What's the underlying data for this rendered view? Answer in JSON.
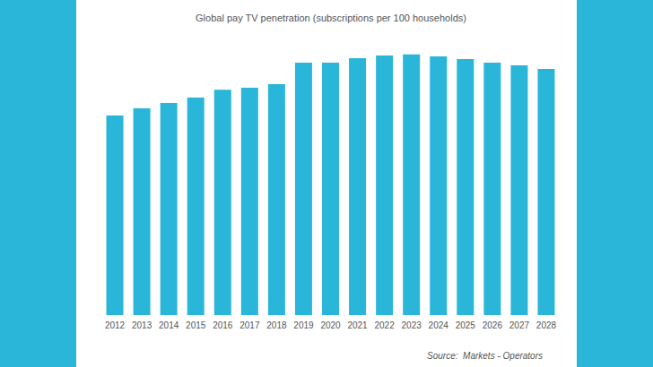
{
  "chart_data": {
    "type": "bar",
    "title": "Global pay TV penetration (subscriptions per 100 households)",
    "source": "Source:  Markets - Operators",
    "categories": [
      "2012",
      "2013",
      "2014",
      "2015",
      "2016",
      "2017",
      "2018",
      "2019",
      "2020",
      "2021",
      "2022",
      "2023",
      "2024",
      "2025",
      "2026",
      "2027",
      "2028"
    ],
    "values": [
      73.8,
      76.5,
      78.5,
      80.5,
      83.4,
      84.1,
      85.4,
      93.4,
      93.4,
      95.0,
      96.0,
      96.4,
      95.7,
      94.7,
      93.4,
      92.4,
      91.1
    ],
    "color": "#29b6d8",
    "ylim": [
      0,
      100
    ],
    "yticks": [
      0,
      100
    ],
    "grid": false,
    "tick_labels": "x"
  }
}
